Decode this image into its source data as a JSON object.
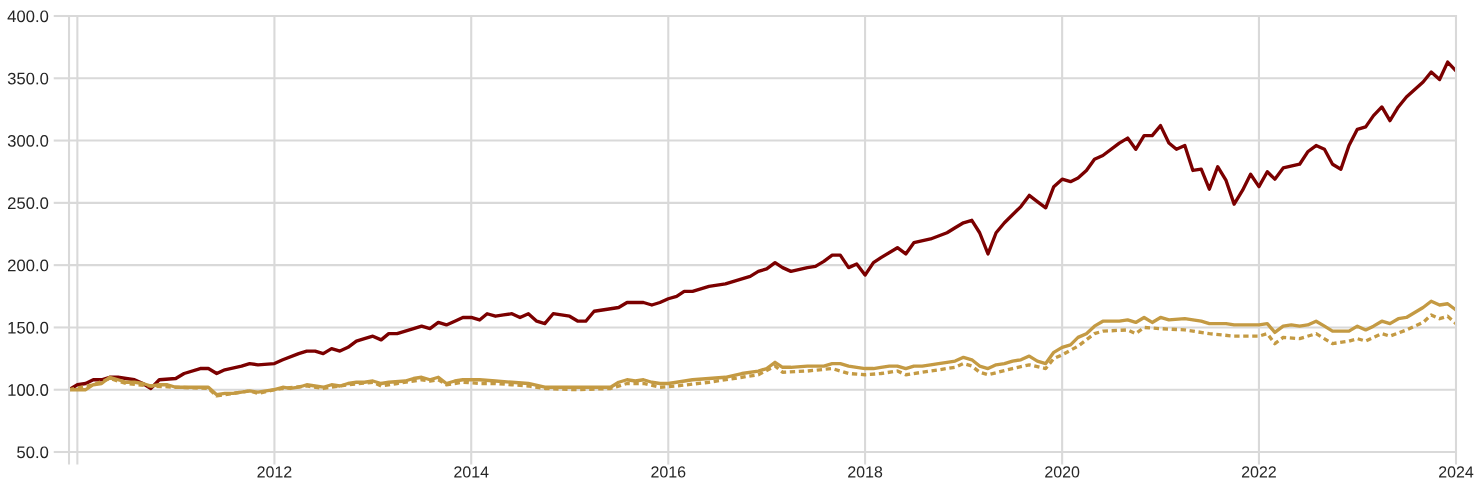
{
  "chart_data": {
    "type": "line",
    "series": [
      {
        "color": "#7b0000",
        "line_style": "solid",
        "x": [
          "2010-11-30",
          "2010-12-31",
          "2011-01-31",
          "2011-02-28",
          "2011-03-31",
          "2011-04-30",
          "2011-05-31",
          "2011-06-30",
          "2011-07-31",
          "2011-08-31",
          "2011-09-30",
          "2011-10-31",
          "2011-12-31",
          "2012-01-31",
          "2012-03-31",
          "2012-04-30",
          "2012-05-31",
          "2012-06-30",
          "2012-08-31",
          "2012-09-30",
          "2012-10-31",
          "2012-12-31",
          "2013-01-31",
          "2013-03-31",
          "2013-04-30",
          "2013-05-31",
          "2013-06-30",
          "2013-07-31",
          "2013-08-31",
          "2013-09-30",
          "2013-10-31",
          "2013-11-30",
          "2013-12-31",
          "2014-01-31",
          "2014-02-28",
          "2014-03-31",
          "2014-05-31",
          "2014-06-30",
          "2014-07-31",
          "2014-08-31",
          "2014-09-30",
          "2014-10-31",
          "2014-11-30",
          "2014-12-31",
          "2015-01-31",
          "2015-02-28",
          "2015-03-31",
          "2015-04-30",
          "2015-05-31",
          "2015-06-30",
          "2015-07-31",
          "2015-08-31",
          "2015-09-30",
          "2015-10-31",
          "2015-12-31",
          "2016-01-31",
          "2016-02-29",
          "2016-03-31",
          "2016-05-31",
          "2016-06-30",
          "2016-07-31",
          "2016-09-30",
          "2016-10-31",
          "2016-11-30",
          "2016-12-31",
          "2017-01-31",
          "2017-02-28",
          "2017-03-31",
          "2017-05-31",
          "2017-07-31",
          "2017-09-30",
          "2017-10-31",
          "2017-11-30",
          "2017-12-31",
          "2018-01-31",
          "2018-02-28",
          "2018-03-31",
          "2018-05-31",
          "2018-06-30",
          "2018-07-31",
          "2018-08-31",
          "2018-09-30",
          "2018-10-31",
          "2018-11-30",
          "2018-12-31",
          "2019-01-31",
          "2019-02-28",
          "2019-04-30",
          "2019-05-31",
          "2019-06-30",
          "2019-08-31",
          "2019-10-31",
          "2019-11-30",
          "2019-12-31",
          "2020-01-31",
          "2020-02-29",
          "2020-03-31",
          "2020-04-30",
          "2020-05-31",
          "2020-07-31",
          "2020-08-31",
          "2020-09-30",
          "2020-10-31",
          "2020-11-30",
          "2020-12-31",
          "2021-01-31",
          "2021-02-28",
          "2021-03-31",
          "2021-04-30",
          "2021-05-31",
          "2021-07-31",
          "2021-08-31",
          "2021-09-30",
          "2021-10-31",
          "2021-11-30",
          "2021-12-31",
          "2022-01-31",
          "2022-02-28",
          "2022-03-31",
          "2022-04-30",
          "2022-05-31",
          "2022-06-30",
          "2022-07-31",
          "2022-08-31",
          "2022-09-30",
          "2022-10-31",
          "2022-11-30",
          "2022-12-31",
          "2023-01-31",
          "2023-02-28",
          "2023-03-31",
          "2023-05-31",
          "2023-06-30",
          "2023-07-31",
          "2023-08-31",
          "2023-09-30",
          "2023-10-31",
          "2023-11-30",
          "2023-12-31",
          "2024-01-31",
          "2024-02-29",
          "2024-03-31",
          "2024-04-30",
          "2024-05-31",
          "2024-06-30",
          "2024-08-31",
          "2024-09-30",
          "2024-10-31",
          "2024-11-30",
          "2024-12-31"
        ],
        "values": [
          100,
          104,
          105,
          108,
          108,
          110,
          110,
          109,
          108,
          105,
          101,
          108,
          109,
          113,
          117,
          117,
          113,
          116,
          119,
          121,
          120,
          121,
          124,
          129,
          131,
          131,
          129,
          133,
          131,
          134,
          139,
          141,
          143,
          140,
          145,
          145,
          149,
          151,
          149,
          154,
          152,
          155,
          158,
          158,
          156,
          161,
          159,
          160,
          161,
          158,
          161,
          155,
          153,
          161,
          159,
          155,
          155,
          163,
          165,
          166,
          170,
          170,
          168,
          170,
          173,
          175,
          179,
          179,
          183,
          185,
          189,
          191,
          195,
          197,
          202,
          198,
          195,
          198,
          199,
          203,
          208,
          208,
          198,
          201,
          192,
          202,
          206,
          214,
          209,
          218,
          221,
          226,
          230,
          234,
          236,
          226,
          209,
          226,
          234,
          247,
          256,
          251,
          246,
          263,
          269,
          267,
          270,
          276,
          285,
          288,
          298,
          302,
          293,
          304,
          304,
          312,
          298,
          293,
          296,
          276,
          277,
          261,
          279,
          268,
          249,
          260,
          273,
          263,
          275,
          269,
          278,
          281,
          291,
          296,
          293,
          281,
          277,
          296,
          309,
          311,
          320,
          327,
          316,
          327,
          335,
          347,
          355,
          349,
          363,
          356
        ]
      },
      {
        "color": "#c49a43",
        "line_style": "dotted",
        "x": [
          "2010-11-30",
          "2011-02-28",
          "2011-04-30",
          "2011-06-30",
          "2011-09-30",
          "2011-12-31",
          "2012-04-30",
          "2012-05-31",
          "2012-07-31",
          "2012-09-30",
          "2012-10-31",
          "2012-12-31",
          "2013-01-31",
          "2013-04-30",
          "2013-06-30",
          "2013-09-30",
          "2013-12-31",
          "2014-01-31",
          "2014-03-31",
          "2014-06-30",
          "2014-07-31",
          "2014-08-31",
          "2014-09-30",
          "2014-11-30",
          "2015-01-31",
          "2015-03-31",
          "2015-05-31",
          "2015-07-31",
          "2015-09-30",
          "2016-01-31",
          "2016-05-31",
          "2016-07-31",
          "2016-09-30",
          "2016-11-30",
          "2017-01-31",
          "2017-05-31",
          "2017-09-30",
          "2017-11-30",
          "2018-01-31",
          "2018-02-28",
          "2018-05-31",
          "2018-08-31",
          "2018-10-31",
          "2018-12-31",
          "2019-02-28",
          "2019-04-30",
          "2019-05-31",
          "2019-08-31",
          "2019-11-30",
          "2019-12-31",
          "2020-01-31",
          "2020-02-29",
          "2020-03-31",
          "2020-06-30",
          "2020-08-31",
          "2020-10-31",
          "2020-11-30",
          "2020-12-31",
          "2021-02-28",
          "2021-04-30",
          "2021-05-31",
          "2021-08-31",
          "2021-09-30",
          "2021-10-31",
          "2021-12-31",
          "2022-03-31",
          "2022-06-30",
          "2022-09-30",
          "2022-12-31",
          "2023-01-31",
          "2023-02-28",
          "2023-03-31",
          "2023-05-31",
          "2023-07-31",
          "2023-09-30",
          "2023-11-30",
          "2023-12-31",
          "2024-01-31",
          "2024-03-31",
          "2024-04-30",
          "2024-06-30",
          "2024-08-31",
          "2024-09-30",
          "2024-10-31",
          "2024-11-30",
          "2024-12-31"
        ],
        "values": [
          100,
          104,
          109,
          105,
          103,
          102,
          101,
          95,
          97,
          99,
          97,
          100,
          101,
          103,
          101,
          104,
          106,
          103,
          105,
          108,
          107,
          108,
          104,
          106,
          105,
          105,
          104,
          103,
          101,
          100,
          101,
          105,
          105,
          102,
          103,
          106,
          110,
          112,
          119,
          114,
          115,
          117,
          113,
          112,
          113,
          115,
          112,
          115,
          118,
          121,
          119,
          114,
          112,
          117,
          120,
          117,
          125,
          128,
          135,
          145,
          147,
          148,
          145,
          150,
          149,
          148,
          145,
          143,
          143,
          145,
          137,
          142,
          141,
          145,
          137,
          139,
          141,
          139,
          145,
          143,
          148,
          154,
          160,
          157,
          159,
          153
        ]
      },
      {
        "color": "#c49a43",
        "line_style": "solid",
        "x": [
          "2010-11-30",
          "2010-12-31",
          "2011-01-31",
          "2011-02-28",
          "2011-03-31",
          "2011-04-30",
          "2011-05-31",
          "2011-06-30",
          "2011-07-31",
          "2011-08-31",
          "2011-09-30",
          "2011-10-31",
          "2011-11-30",
          "2011-12-31",
          "2012-03-31",
          "2012-04-30",
          "2012-05-31",
          "2012-06-30",
          "2012-07-31",
          "2012-08-31",
          "2012-09-30",
          "2012-10-31",
          "2012-11-30",
          "2012-12-31",
          "2013-01-31",
          "2013-02-28",
          "2013-03-31",
          "2013-04-30",
          "2013-05-31",
          "2013-06-30",
          "2013-07-31",
          "2013-08-31",
          "2013-09-30",
          "2013-10-31",
          "2013-11-30",
          "2013-12-31",
          "2014-01-31",
          "2014-02-28",
          "2014-04-30",
          "2014-05-31",
          "2014-06-30",
          "2014-07-31",
          "2014-08-31",
          "2014-09-30",
          "2014-10-31",
          "2014-11-30",
          "2015-01-31",
          "2015-03-31",
          "2015-05-31",
          "2015-07-31",
          "2015-09-30",
          "2015-11-30",
          "2016-01-31",
          "2016-03-31",
          "2016-05-31",
          "2016-06-30",
          "2016-07-31",
          "2016-08-31",
          "2016-09-30",
          "2016-10-31",
          "2016-11-30",
          "2016-12-31",
          "2017-01-31",
          "2017-03-31",
          "2017-05-31",
          "2017-07-31",
          "2017-09-30",
          "2017-11-30",
          "2017-12-31",
          "2018-01-31",
          "2018-02-28",
          "2018-03-31",
          "2018-05-31",
          "2018-07-31",
          "2018-08-31",
          "2018-09-30",
          "2018-10-31",
          "2018-11-30",
          "2018-12-31",
          "2019-01-31",
          "2019-02-28",
          "2019-03-31",
          "2019-04-30",
          "2019-05-31",
          "2019-06-30",
          "2019-07-31",
          "2019-08-31",
          "2019-09-30",
          "2019-10-31",
          "2019-11-30",
          "2019-12-31",
          "2020-01-31",
          "2020-02-29",
          "2020-03-31",
          "2020-04-30",
          "2020-05-31",
          "2020-06-30",
          "2020-07-31",
          "2020-08-31",
          "2020-09-30",
          "2020-10-31",
          "2020-11-30",
          "2020-12-31",
          "2021-01-31",
          "2021-02-28",
          "2021-03-31",
          "2021-04-30",
          "2021-05-31",
          "2021-07-31",
          "2021-08-31",
          "2021-09-30",
          "2021-10-31",
          "2021-11-30",
          "2021-12-31",
          "2022-01-31",
          "2022-03-31",
          "2022-04-30",
          "2022-05-31",
          "2022-06-30",
          "2022-08-31",
          "2022-09-30",
          "2022-12-31",
          "2023-01-31",
          "2023-02-28",
          "2023-03-31",
          "2023-04-30",
          "2023-05-31",
          "2023-06-30",
          "2023-07-31",
          "2023-08-31",
          "2023-09-30",
          "2023-10-31",
          "2023-11-30",
          "2023-12-31",
          "2024-01-31",
          "2024-02-29",
          "2024-03-31",
          "2024-04-30",
          "2024-05-31",
          "2024-06-30",
          "2024-07-31",
          "2024-08-31",
          "2024-09-30",
          "2024-10-31",
          "2024-11-30",
          "2024-12-31"
        ],
        "values": [
          100,
          100,
          100,
          104,
          105,
          110,
          108,
          106,
          106,
          105,
          103,
          104,
          104,
          102,
          102,
          102,
          96,
          97,
          97,
          98,
          99,
          98,
          99,
          100,
          102,
          101,
          102,
          104,
          103,
          102,
          104,
          103,
          105,
          106,
          106,
          107,
          105,
          106,
          107,
          109,
          110,
          108,
          110,
          105,
          107,
          108,
          108,
          107,
          106,
          105,
          102,
          102,
          102,
          102,
          102,
          106,
          108,
          107,
          108,
          106,
          105,
          105,
          106,
          108,
          109,
          110,
          113,
          115,
          117,
          122,
          118,
          118,
          119,
          119,
          121,
          121,
          119,
          118,
          117,
          117,
          118,
          119,
          119,
          117,
          119,
          119,
          120,
          121,
          122,
          123,
          126,
          124,
          119,
          117,
          120,
          121,
          123,
          124,
          127,
          123,
          121,
          130,
          134,
          136,
          142,
          145,
          151,
          155,
          155,
          156,
          154,
          158,
          154,
          158,
          156,
          157,
          156,
          155,
          153,
          153,
          152,
          152,
          153,
          146,
          151,
          152,
          151,
          152,
          155,
          151,
          147,
          147,
          147,
          151,
          148,
          151,
          155,
          153,
          157,
          158,
          162,
          166,
          171,
          168,
          169,
          164
        ]
      }
    ],
    "xlim": [
      "2010-11-30",
      "2024-12-31"
    ],
    "xticks": [
      {
        "value": "2010-11-30",
        "label": null
      },
      {
        "value": "2010-12-31",
        "label": null
      },
      {
        "value": "2012-12-31",
        "label": "2012"
      },
      {
        "value": "2014-12-31",
        "label": "2014"
      },
      {
        "value": "2016-12-31",
        "label": "2016"
      },
      {
        "value": "2018-12-31",
        "label": "2018"
      },
      {
        "value": "2020-12-31",
        "label": "2020"
      },
      {
        "value": "2022-12-31",
        "label": "2022"
      },
      {
        "value": "2024-12-31",
        "label": "2024"
      }
    ],
    "ylim": [
      50,
      400
    ],
    "yticks": [
      {
        "value": 50,
        "label": "50.0"
      },
      {
        "value": 100,
        "label": "100.0"
      },
      {
        "value": 150,
        "label": "150.0"
      },
      {
        "value": 200,
        "label": "200.0"
      },
      {
        "value": 250,
        "label": "250.0"
      },
      {
        "value": 300,
        "label": "300.0"
      },
      {
        "value": 350,
        "label": "350.0"
      },
      {
        "value": 400,
        "label": "400.0"
      }
    ],
    "grid": true
  }
}
